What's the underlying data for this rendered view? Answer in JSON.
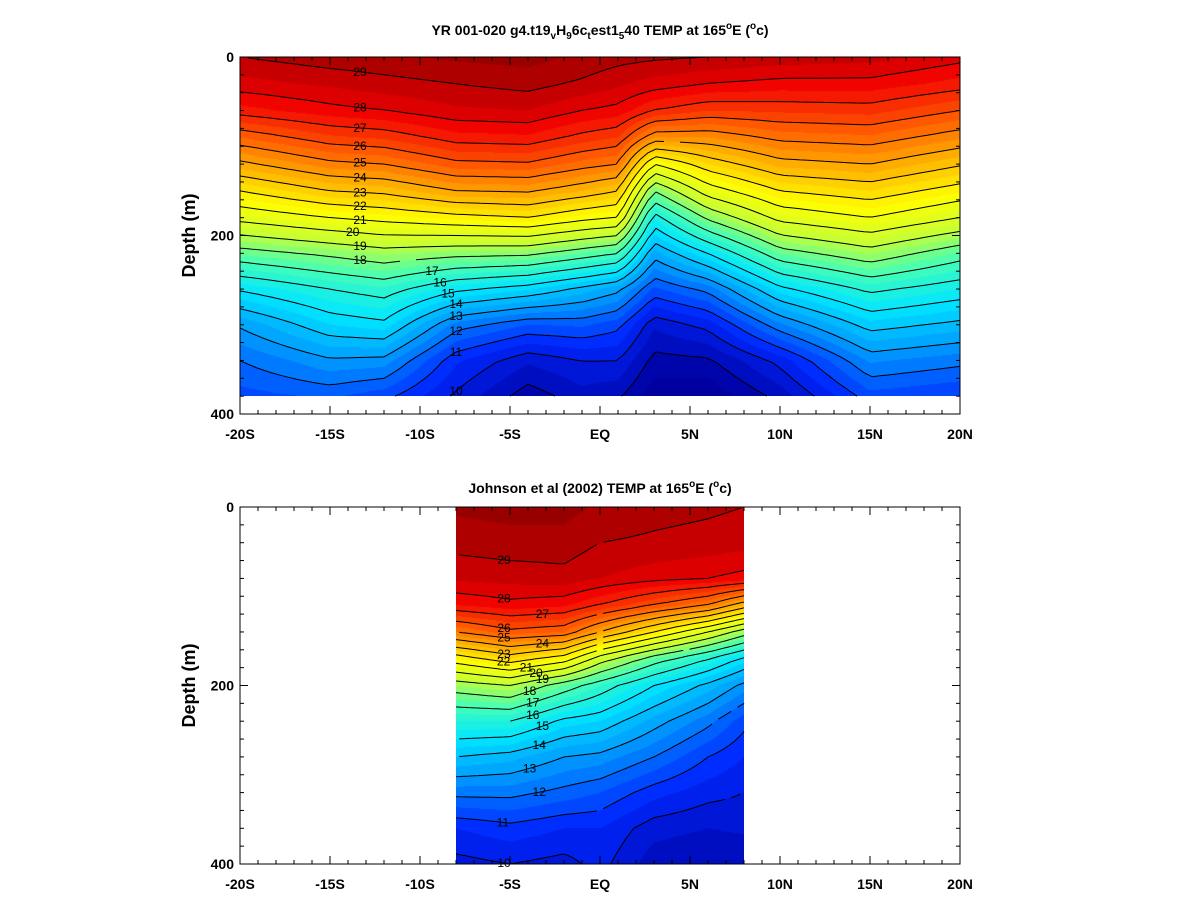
{
  "chart_data": [
    {
      "type": "heatmap",
      "title": "YR 001-020 g4.t19$_v$H$_9$6c$_t$est1$_5$40 TEMP at 165$^o$E ($^o$c)",
      "title_parts": [
        {
          "t": "YR 001-020 g4.t19",
          "s": "n"
        },
        {
          "t": "v",
          "s": "sub"
        },
        {
          "t": "H",
          "s": "n"
        },
        {
          "t": "9",
          "s": "sub"
        },
        {
          "t": "6c",
          "s": "n"
        },
        {
          "t": "t",
          "s": "sub"
        },
        {
          "t": "est1",
          "s": "n"
        },
        {
          "t": "5",
          "s": "sub"
        },
        {
          "t": "40 TEMP at 165",
          "s": "n"
        },
        {
          "t": "o",
          "s": "sup"
        },
        {
          "t": "E (",
          "s": "n"
        },
        {
          "t": "o",
          "s": "sup"
        },
        {
          "t": "c)",
          "s": "n"
        }
      ],
      "xlabel": "",
      "ylabel": "Depth (m)",
      "xlim": [
        -20,
        20
      ],
      "ylim": [
        400,
        0
      ],
      "x_ticks": [
        "-20S",
        "-15S",
        "-10S",
        "-5S",
        "EQ",
        "5N",
        "10N",
        "15N",
        "20N"
      ],
      "y_ticks": [
        "0",
        "200",
        "400"
      ],
      "data_extent": {
        "lat": [
          -20,
          20
        ],
        "depth": [
          0,
          380
        ]
      },
      "units": "degC",
      "depth_levels_m": [
        0,
        30,
        60,
        90,
        120,
        150,
        180,
        220,
        260,
        300,
        340,
        380
      ],
      "profiles": [
        {
          "lat": -20,
          "temps": [
            29.0,
            28.3,
            27.3,
            25.5,
            23.8,
            22.0,
            20.3,
            17.6,
            15.1,
            13.1,
            12.0,
            11.3
          ]
        },
        {
          "lat": -15,
          "temps": [
            29.3,
            28.6,
            27.8,
            26.4,
            24.8,
            23.0,
            21.0,
            18.2,
            16.0,
            14.5,
            12.9,
            11.6
          ]
        },
        {
          "lat": -12,
          "temps": [
            29.4,
            28.8,
            28.0,
            26.6,
            25.0,
            23.2,
            21.3,
            18.6,
            16.4,
            14.8,
            12.8,
            11.2
          ]
        },
        {
          "lat": -8,
          "temps": [
            29.6,
            29.0,
            28.4,
            27.3,
            25.8,
            24.0,
            21.7,
            18.3,
            15.2,
            12.3,
            10.6,
            9.9
          ]
        },
        {
          "lat": -4,
          "temps": [
            29.7,
            29.2,
            28.5,
            27.4,
            25.9,
            24.1,
            22.0,
            18.2,
            14.6,
            11.5,
            9.6,
            8.7
          ]
        },
        {
          "lat": -1,
          "temps": [
            29.4,
            28.9,
            28.0,
            26.8,
            25.3,
            23.5,
            21.3,
            17.5,
            13.8,
            11.6,
            10.0,
            9.3
          ]
        },
        {
          "lat": 1,
          "temps": [
            29.2,
            28.6,
            27.8,
            26.5,
            25.0,
            23.0,
            21.0,
            17.0,
            13.2,
            11.2,
            10.0,
            9.1
          ]
        },
        {
          "lat": 3,
          "temps": [
            29.1,
            28.3,
            27.0,
            24.5,
            21.0,
            18.0,
            15.6,
            13.3,
            11.4,
            9.6,
            8.8,
            8.2
          ]
        },
        {
          "lat": 6,
          "temps": [
            29.0,
            28.0,
            26.5,
            24.5,
            22.5,
            20.5,
            18.2,
            15.0,
            12.2,
            10.2,
            8.9,
            8.1
          ]
        },
        {
          "lat": 10,
          "temps": [
            28.8,
            27.8,
            26.6,
            25.2,
            23.7,
            22.0,
            20.3,
            17.6,
            14.8,
            12.4,
            10.2,
            9.2
          ]
        },
        {
          "lat": 15,
          "temps": [
            28.7,
            27.8,
            26.7,
            25.4,
            24.0,
            22.5,
            21.0,
            18.6,
            16.2,
            14.3,
            12.6,
            11.3
          ]
        },
        {
          "lat": 20,
          "temps": [
            28.2,
            27.3,
            26.0,
            24.6,
            23.1,
            21.6,
            20.0,
            17.4,
            15.5,
            13.8,
            12.2,
            11.0
          ]
        }
      ]
    },
    {
      "type": "heatmap",
      "title": "Johnson et al (2002) TEMP at 165$^o$E ($^o$c)",
      "title_parts": [
        {
          "t": "Johnson et al (2002) TEMP at 165",
          "s": "n"
        },
        {
          "t": "o",
          "s": "sup"
        },
        {
          "t": "E (",
          "s": "n"
        },
        {
          "t": "o",
          "s": "sup"
        },
        {
          "t": "c)",
          "s": "n"
        }
      ],
      "xlabel": "",
      "ylabel": "Depth (m)",
      "xlim": [
        -20,
        20
      ],
      "ylim": [
        400,
        0
      ],
      "x_ticks": [
        "-20S",
        "-15S",
        "-10S",
        "-5S",
        "EQ",
        "5N",
        "10N",
        "15N",
        "20N"
      ],
      "y_ticks": [
        "0",
        "200",
        "400"
      ],
      "data_extent": {
        "lat": [
          -8,
          8
        ],
        "depth": [
          0,
          400
        ]
      },
      "units": "degC",
      "depth_levels_m": [
        0,
        40,
        80,
        110,
        140,
        170,
        200,
        240,
        280,
        320,
        360,
        400
      ],
      "profiles": [
        {
          "lat": -8,
          "temps": [
            29.6,
            29.2,
            28.6,
            27.5,
            25.0,
            21.5,
            18.5,
            16.0,
            14.0,
            12.2,
            10.5,
            9.8
          ]
        },
        {
          "lat": -5,
          "temps": [
            29.7,
            29.3,
            28.7,
            27.8,
            25.8,
            22.5,
            19.0,
            16.0,
            13.7,
            12.2,
            10.8,
            10.0
          ]
        },
        {
          "lat": -2,
          "temps": [
            29.7,
            29.3,
            28.8,
            27.6,
            25.5,
            21.5,
            17.5,
            14.8,
            13.0,
            11.8,
            10.5,
            9.8
          ]
        },
        {
          "lat": 0,
          "temps": [
            29.4,
            29.0,
            28.5,
            27.0,
            24.0,
            19.5,
            16.5,
            14.5,
            12.8,
            11.5,
            10.5,
            10.2
          ]
        },
        {
          "lat": 3,
          "temps": [
            29.2,
            28.9,
            28.2,
            26.0,
            22.0,
            17.5,
            15.0,
            13.3,
            12.0,
            10.7,
            9.7,
            9.2
          ]
        },
        {
          "lat": 6,
          "temps": [
            29.1,
            28.8,
            28.0,
            25.0,
            20.0,
            16.0,
            13.8,
            12.2,
            11.0,
            10.2,
            9.5,
            9.0
          ]
        },
        {
          "lat": 8,
          "temps": [
            29.0,
            28.7,
            27.8,
            23.5,
            18.5,
            14.8,
            12.8,
            11.2,
            10.5,
            10.0,
            9.6,
            9.0
          ]
        }
      ]
    }
  ]
}
